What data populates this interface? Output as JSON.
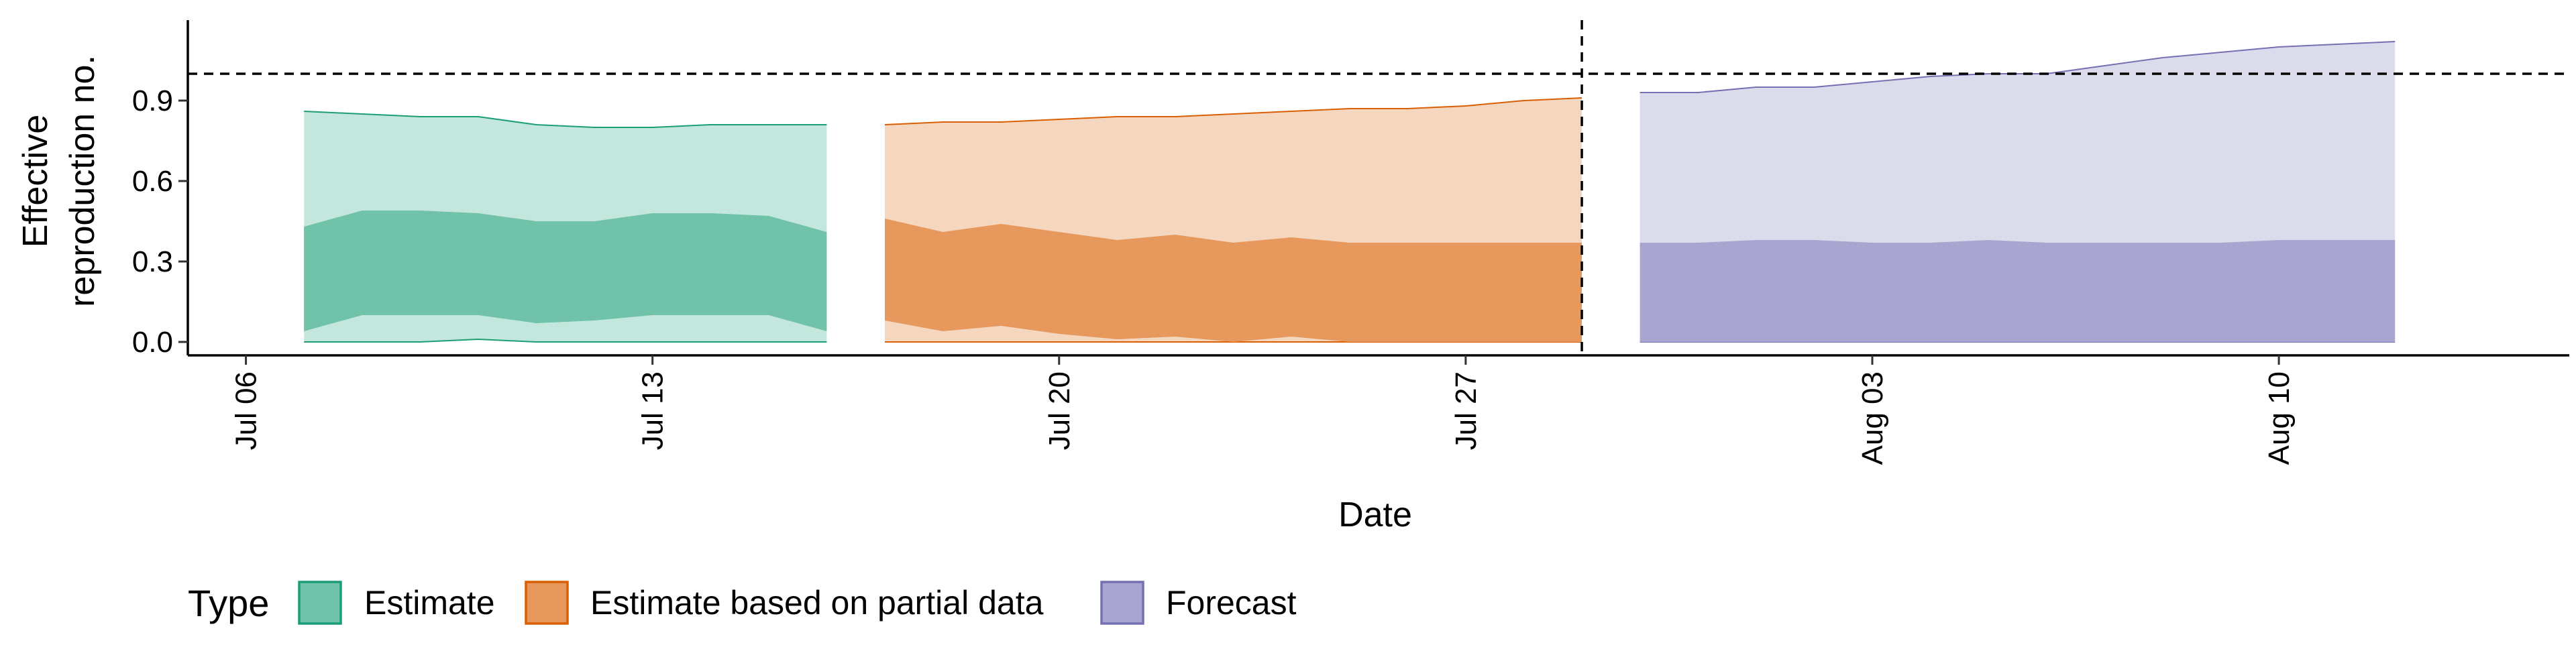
{
  "chart_data": {
    "type": "area",
    "xlabel": "Date",
    "ylabel": "Effective reproduction no.",
    "ylabel_lines": [
      "Effective",
      "reproduction no."
    ],
    "x_range": [
      "2020-07-05",
      "2020-08-15"
    ],
    "ylim": [
      -0.05,
      1.2
    ],
    "y_ticks": [
      0.0,
      0.3,
      0.6,
      0.9
    ],
    "y_tick_labels": [
      "0.0",
      "0.3",
      "0.6",
      "0.9"
    ],
    "x_ticks": [
      "2020-07-06",
      "2020-07-13",
      "2020-07-20",
      "2020-07-27",
      "2020-08-03",
      "2020-08-10"
    ],
    "x_tick_labels": [
      "Jul 06",
      "Jul 13",
      "Jul 20",
      "Jul 27",
      "Aug 03",
      "Aug 10"
    ],
    "reference_line_y": 1.0,
    "reference_line_x": "2020-07-29",
    "grid": false,
    "legend": {
      "title": "Type",
      "position": "bottom",
      "entries": [
        {
          "label": "Estimate",
          "fill": "#70c2a8",
          "stroke": "#1b9e77"
        },
        {
          "label": "Estimate based on partial data",
          "fill": "#e7985d",
          "stroke": "#d95f02"
        },
        {
          "label": "Forecast",
          "fill": "#a8a5d1",
          "stroke": "#7570b3"
        }
      ]
    },
    "series": [
      {
        "name": "Estimate",
        "outer_fill": "#c4e7dd",
        "inner_fill": "#70c2a8",
        "stroke": "#1b9e77",
        "x": [
          "2020-07-07",
          "2020-07-08",
          "2020-07-09",
          "2020-07-10",
          "2020-07-11",
          "2020-07-12",
          "2020-07-13",
          "2020-07-14",
          "2020-07-15",
          "2020-07-16"
        ],
        "outer_lower": [
          0.0,
          0.0,
          0.0,
          0.01,
          0.0,
          0.0,
          0.0,
          0.0,
          0.0,
          0.0
        ],
        "inner_lower": [
          0.04,
          0.1,
          0.1,
          0.1,
          0.07,
          0.08,
          0.1,
          0.1,
          0.1,
          0.04
        ],
        "inner_upper": [
          0.43,
          0.49,
          0.49,
          0.48,
          0.45,
          0.45,
          0.48,
          0.48,
          0.47,
          0.41
        ],
        "outer_upper": [
          0.86,
          0.85,
          0.84,
          0.84,
          0.81,
          0.8,
          0.8,
          0.81,
          0.81,
          0.81
        ]
      },
      {
        "name": "Estimate based on partial data",
        "outer_fill": "#f5d6bf",
        "inner_fill": "#e7985d",
        "stroke": "#d95f02",
        "x": [
          "2020-07-17",
          "2020-07-18",
          "2020-07-19",
          "2020-07-20",
          "2020-07-21",
          "2020-07-22",
          "2020-07-23",
          "2020-07-24",
          "2020-07-25",
          "2020-07-26",
          "2020-07-27",
          "2020-07-28",
          "2020-07-29"
        ],
        "outer_lower": [
          0.0,
          0.0,
          0.0,
          0.0,
          0.0,
          0.0,
          0.0,
          0.0,
          0.0,
          0.0,
          0.0,
          0.0,
          0.0
        ],
        "inner_lower": [
          0.08,
          0.04,
          0.06,
          0.03,
          0.01,
          0.02,
          0.0,
          0.02,
          0.0,
          0.0,
          0.0,
          0.0,
          0.0
        ],
        "inner_upper": [
          0.46,
          0.41,
          0.44,
          0.41,
          0.38,
          0.4,
          0.37,
          0.39,
          0.37,
          0.37,
          0.37,
          0.37,
          0.37
        ],
        "outer_upper": [
          0.81,
          0.82,
          0.82,
          0.83,
          0.84,
          0.84,
          0.85,
          0.86,
          0.87,
          0.87,
          0.88,
          0.9,
          0.91
        ]
      },
      {
        "name": "Forecast",
        "outer_fill": "#dcdbeb",
        "inner_fill": "#a8a5d1",
        "stroke": "#7570b3",
        "x": [
          "2020-07-30",
          "2020-07-31",
          "2020-08-01",
          "2020-08-02",
          "2020-08-03",
          "2020-08-04",
          "2020-08-05",
          "2020-08-06",
          "2020-08-07",
          "2020-08-08",
          "2020-08-09",
          "2020-08-10",
          "2020-08-11",
          "2020-08-12"
        ],
        "outer_lower": [
          0.0,
          0.0,
          0.0,
          0.0,
          0.0,
          0.0,
          0.0,
          0.0,
          0.0,
          0.0,
          0.0,
          0.0,
          0.0,
          0.0
        ],
        "inner_lower": [
          0.0,
          0.0,
          0.0,
          0.0,
          0.0,
          0.0,
          0.0,
          0.0,
          0.0,
          0.0,
          0.0,
          0.0,
          0.0,
          0.0
        ],
        "inner_upper": [
          0.37,
          0.37,
          0.38,
          0.38,
          0.37,
          0.37,
          0.38,
          0.37,
          0.37,
          0.37,
          0.37,
          0.38,
          0.38,
          0.38
        ],
        "outer_upper": [
          0.93,
          0.93,
          0.95,
          0.95,
          0.97,
          0.99,
          1.0,
          1.0,
          1.03,
          1.06,
          1.08,
          1.1,
          1.11,
          1.12
        ]
      }
    ]
  }
}
